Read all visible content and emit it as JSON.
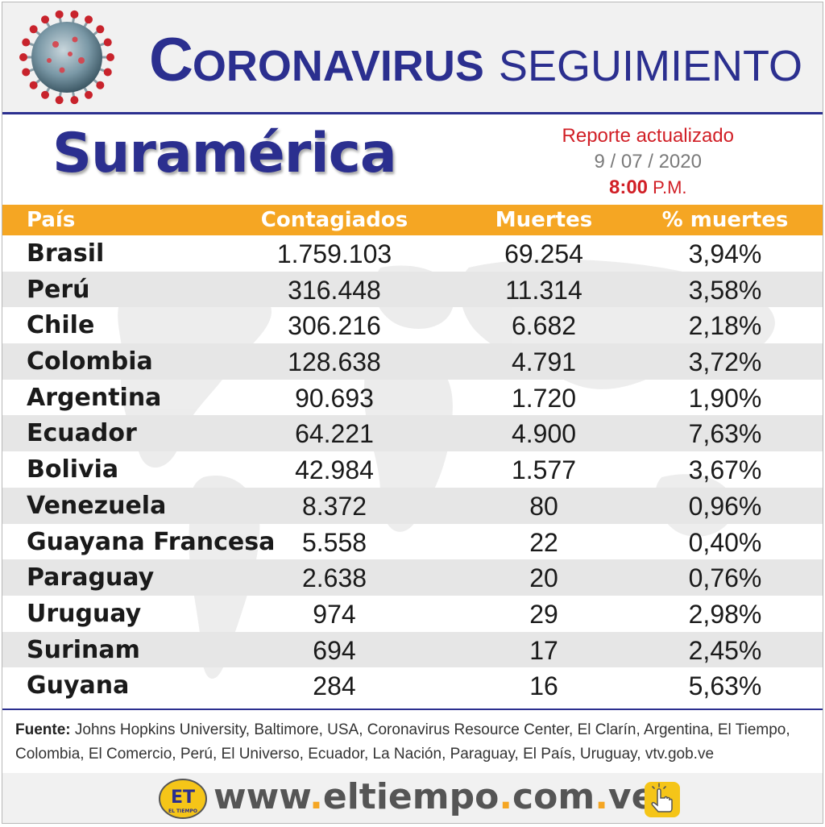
{
  "header": {
    "title_first_letter": "C",
    "title_rest": "ORONAVIRUS",
    "title_second": "SEGUIMIENTO"
  },
  "region": "Suramérica",
  "report": {
    "label": "Reporte actualizado",
    "date": "9 / 07 / 2020",
    "time_bold": "8:00",
    "time_suffix": " P.M."
  },
  "table": {
    "headers": {
      "country": "País",
      "cases": "Contagiados",
      "deaths": "Muertes",
      "pct": "% muertes"
    },
    "rows": [
      {
        "country": "Brasil",
        "cases": "1.759.103",
        "deaths": "69.254",
        "pct": "3,94%"
      },
      {
        "country": "Perú",
        "cases": "316.448",
        "deaths": "11.314",
        "pct": "3,58%"
      },
      {
        "country": "Chile",
        "cases": "306.216",
        "deaths": "6.682",
        "pct": "2,18%"
      },
      {
        "country": "Colombia",
        "cases": "128.638",
        "deaths": "4.791",
        "pct": "3,72%"
      },
      {
        "country": "Argentina",
        "cases": "90.693",
        "deaths": "1.720",
        "pct": "1,90%"
      },
      {
        "country": "Ecuador",
        "cases": "64.221",
        "deaths": "4.900",
        "pct": "7,63%"
      },
      {
        "country": "Bolivia",
        "cases": "42.984",
        "deaths": "1.577",
        "pct": "3,67%"
      },
      {
        "country": "Venezuela",
        "cases": "8.372",
        "deaths": "80",
        "pct": "0,96%"
      },
      {
        "country": "Guayana Francesa",
        "cases": "5.558",
        "deaths": "22",
        "pct": "0,40%"
      },
      {
        "country": "Paraguay",
        "cases": "2.638",
        "deaths": "20",
        "pct": "0,76%"
      },
      {
        "country": "Uruguay",
        "cases": "974",
        "deaths": "29",
        "pct": "2,98%"
      },
      {
        "country": "Surinam",
        "cases": "694",
        "deaths": "17",
        "pct": "2,45%"
      },
      {
        "country": "Guyana",
        "cases": "284",
        "deaths": "16",
        "pct": "5,63%"
      }
    ]
  },
  "source": {
    "label": "Fuente:",
    "text": " Johns Hopkins University, Baltimore, USA, Coronavirus Resource Center,  El Clarín, Argentina, El Tiempo, Colombia, El Comercio, Perú, El Universo, Ecuador, La Nación, Paraguay, El País, Uruguay, vtv.gob.ve"
  },
  "footer": {
    "logo_text": "ET",
    "logo_subtext": "EL TIEMPO",
    "site_parts": [
      "www",
      ".",
      "eltiempo",
      ".",
      "com",
      ".",
      "ve"
    ]
  },
  "colors": {
    "title_blue": "#2b2f8f",
    "header_orange": "#f5a623",
    "report_red": "#d11f26",
    "row_alt_gray": "#e6e6e6"
  },
  "icons": [
    "coronavirus-icon",
    "el-tiempo-logo",
    "pointing-hand-icon"
  ]
}
